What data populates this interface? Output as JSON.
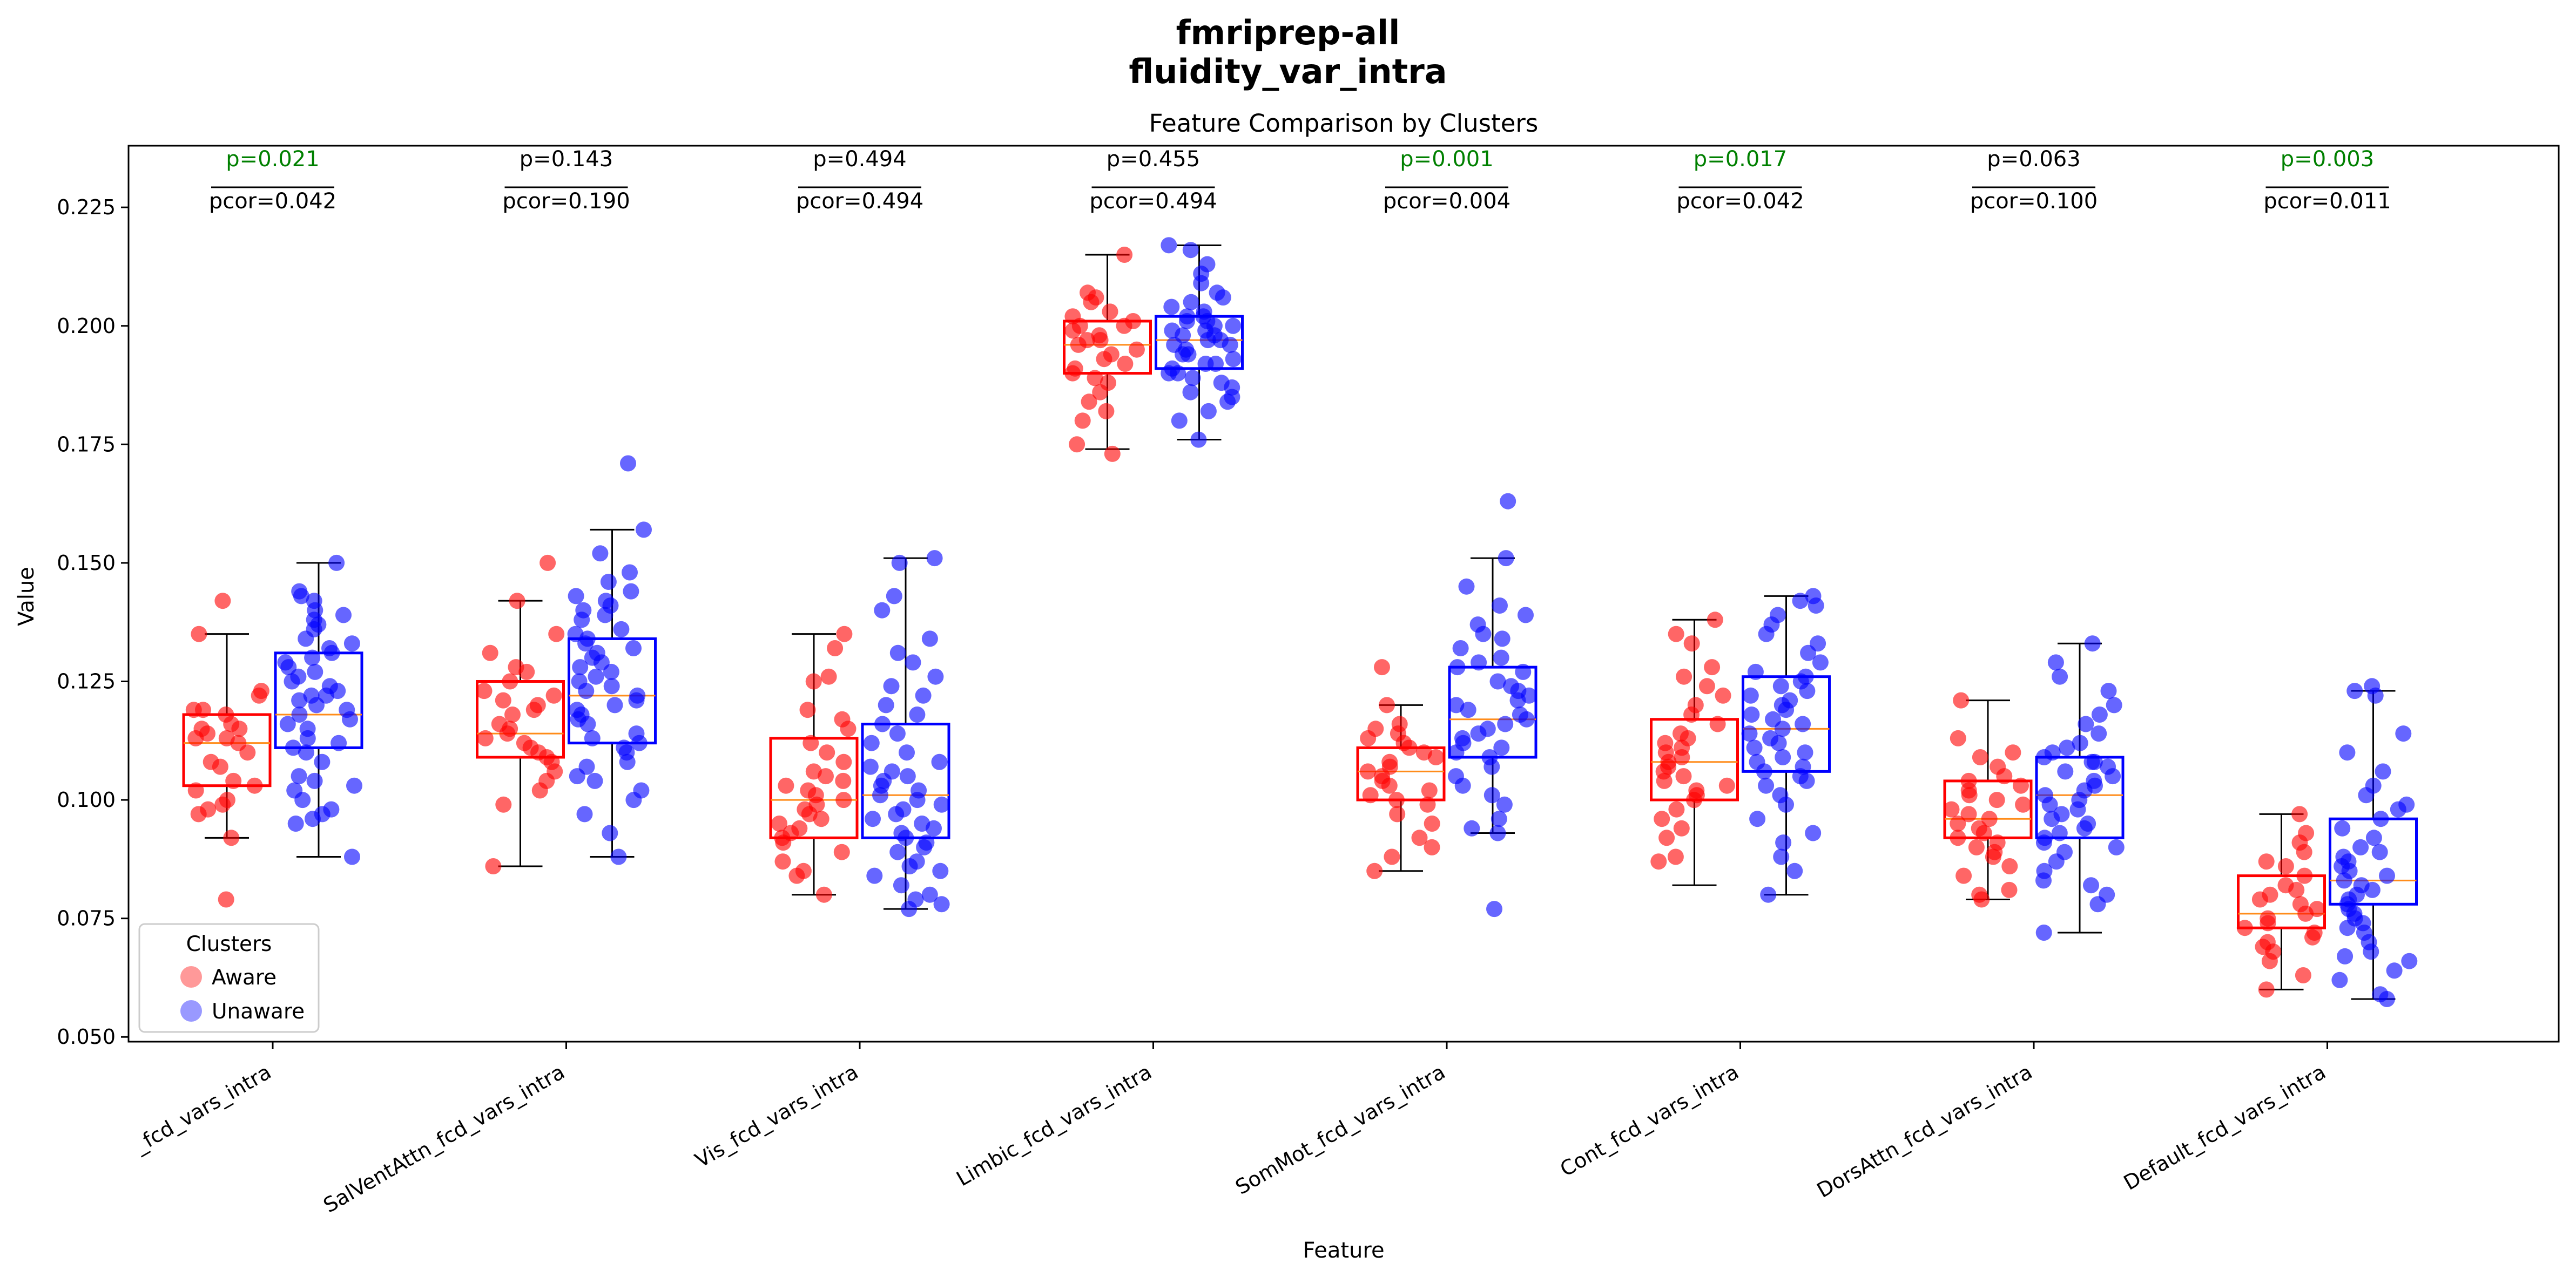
{
  "chart_data": {
    "type": "box-strip",
    "suptitle_line1": "fmriprep-all",
    "suptitle_line2": "fluidity_var_intra",
    "title": "Feature Comparison by Clusters",
    "xlabel": "Feature",
    "ylabel": "Value",
    "ylim": [
      0.049,
      0.238
    ],
    "yticks": [
      {
        "value": 0.05,
        "label": "0.050"
      },
      {
        "value": 0.075,
        "label": "0.075"
      },
      {
        "value": 0.1,
        "label": "0.100"
      },
      {
        "value": 0.125,
        "label": "0.125"
      },
      {
        "value": 0.15,
        "label": "0.150"
      },
      {
        "value": 0.175,
        "label": "0.175"
      },
      {
        "value": 0.2,
        "label": "0.200"
      },
      {
        "value": 0.225,
        "label": "0.225"
      }
    ],
    "grid": false,
    "legend": {
      "title": "Clusters",
      "position": "lower-left",
      "entries": [
        {
          "name": "Aware",
          "color": "#ff0000"
        },
        {
          "name": "Unaware",
          "color": "#0000ff"
        }
      ]
    },
    "colors": {
      "aware": "#ff0000",
      "unaware": "#0000ff",
      "median": "#ff8c1a",
      "significant": "#008000",
      "normal": "#000000"
    },
    "groups": [
      {
        "label": "_fcd_vars_intra",
        "p": "p=0.021",
        "pcor": "pcor=0.042",
        "significant": true,
        "aware": {
          "whislo": 0.092,
          "q1": 0.103,
          "med": 0.112,
          "q3": 0.118,
          "whishi": 0.135,
          "points": [
            0.079,
            0.092,
            0.097,
            0.098,
            0.099,
            0.1,
            0.102,
            0.103,
            0.104,
            0.107,
            0.108,
            0.11,
            0.112,
            0.113,
            0.113,
            0.114,
            0.115,
            0.115,
            0.116,
            0.118,
            0.119,
            0.119,
            0.122,
            0.123,
            0.135,
            0.142
          ]
        },
        "unaware": {
          "whislo": 0.088,
          "q1": 0.111,
          "med": 0.118,
          "q3": 0.131,
          "whishi": 0.15,
          "points": [
            0.088,
            0.095,
            0.096,
            0.097,
            0.098,
            0.1,
            0.102,
            0.103,
            0.104,
            0.105,
            0.108,
            0.11,
            0.111,
            0.112,
            0.113,
            0.115,
            0.116,
            0.117,
            0.118,
            0.119,
            0.12,
            0.121,
            0.122,
            0.122,
            0.123,
            0.124,
            0.125,
            0.126,
            0.127,
            0.128,
            0.129,
            0.13,
            0.131,
            0.132,
            0.133,
            0.134,
            0.136,
            0.137,
            0.138,
            0.139,
            0.14,
            0.142,
            0.143,
            0.144,
            0.15
          ]
        }
      },
      {
        "label": "SalVentAttn_fcd_vars_intra",
        "p": "p=0.143",
        "pcor": "pcor=0.190",
        "significant": false,
        "aware": {
          "whislo": 0.086,
          "q1": 0.109,
          "med": 0.114,
          "q3": 0.125,
          "whishi": 0.142,
          "points": [
            0.086,
            0.099,
            0.102,
            0.104,
            0.106,
            0.108,
            0.109,
            0.11,
            0.111,
            0.112,
            0.113,
            0.114,
            0.115,
            0.116,
            0.118,
            0.119,
            0.12,
            0.121,
            0.122,
            0.123,
            0.125,
            0.127,
            0.128,
            0.131,
            0.135,
            0.142,
            0.15
          ]
        },
        "unaware": {
          "whislo": 0.088,
          "q1": 0.112,
          "med": 0.122,
          "q3": 0.134,
          "whishi": 0.157,
          "points": [
            0.088,
            0.093,
            0.097,
            0.1,
            0.102,
            0.104,
            0.105,
            0.107,
            0.108,
            0.11,
            0.111,
            0.112,
            0.113,
            0.114,
            0.116,
            0.117,
            0.118,
            0.119,
            0.12,
            0.121,
            0.122,
            0.123,
            0.124,
            0.125,
            0.126,
            0.127,
            0.128,
            0.129,
            0.13,
            0.131,
            0.132,
            0.133,
            0.134,
            0.135,
            0.136,
            0.138,
            0.139,
            0.14,
            0.141,
            0.142,
            0.143,
            0.144,
            0.146,
            0.148,
            0.152,
            0.157,
            0.171
          ]
        }
      },
      {
        "label": "Vis_fcd_vars_intra",
        "p": "p=0.494",
        "pcor": "pcor=0.494",
        "significant": false,
        "aware": {
          "whislo": 0.08,
          "q1": 0.092,
          "med": 0.1,
          "q3": 0.113,
          "whishi": 0.135,
          "points": [
            0.08,
            0.084,
            0.085,
            0.087,
            0.089,
            0.091,
            0.092,
            0.093,
            0.094,
            0.095,
            0.096,
            0.097,
            0.098,
            0.099,
            0.1,
            0.101,
            0.102,
            0.103,
            0.104,
            0.105,
            0.106,
            0.108,
            0.11,
            0.112,
            0.115,
            0.117,
            0.119,
            0.125,
            0.126,
            0.132,
            0.135
          ]
        },
        "unaware": {
          "whislo": 0.077,
          "q1": 0.092,
          "med": 0.101,
          "q3": 0.116,
          "whishi": 0.151,
          "points": [
            0.077,
            0.078,
            0.079,
            0.08,
            0.082,
            0.084,
            0.085,
            0.086,
            0.087,
            0.089,
            0.09,
            0.091,
            0.092,
            0.093,
            0.094,
            0.095,
            0.096,
            0.097,
            0.098,
            0.099,
            0.1,
            0.101,
            0.102,
            0.103,
            0.104,
            0.105,
            0.106,
            0.107,
            0.108,
            0.11,
            0.112,
            0.114,
            0.116,
            0.118,
            0.12,
            0.122,
            0.124,
            0.126,
            0.129,
            0.131,
            0.134,
            0.14,
            0.143,
            0.15,
            0.151
          ]
        }
      },
      {
        "label": "Limbic_fcd_vars_intra",
        "p": "p=0.455",
        "pcor": "pcor=0.494",
        "significant": false,
        "aware": {
          "whislo": 0.174,
          "q1": 0.19,
          "med": 0.196,
          "q3": 0.201,
          "whishi": 0.215,
          "points": [
            0.173,
            0.175,
            0.18,
            0.182,
            0.184,
            0.186,
            0.188,
            0.189,
            0.19,
            0.191,
            0.192,
            0.193,
            0.194,
            0.195,
            0.196,
            0.197,
            0.197,
            0.198,
            0.199,
            0.2,
            0.2,
            0.201,
            0.202,
            0.203,
            0.205,
            0.206,
            0.207,
            0.215
          ]
        },
        "unaware": {
          "whislo": 0.176,
          "q1": 0.191,
          "med": 0.197,
          "q3": 0.202,
          "whishi": 0.217,
          "points": [
            0.176,
            0.18,
            0.182,
            0.184,
            0.185,
            0.186,
            0.187,
            0.188,
            0.189,
            0.19,
            0.19,
            0.191,
            0.192,
            0.192,
            0.193,
            0.194,
            0.194,
            0.195,
            0.196,
            0.196,
            0.197,
            0.197,
            0.198,
            0.198,
            0.199,
            0.199,
            0.2,
            0.2,
            0.201,
            0.201,
            0.202,
            0.202,
            0.203,
            0.204,
            0.205,
            0.206,
            0.207,
            0.209,
            0.211,
            0.213,
            0.216,
            0.217
          ]
        }
      },
      {
        "label": "SomMot_fcd_vars_intra",
        "p": "p=0.001",
        "pcor": "pcor=0.004",
        "significant": true,
        "aware": {
          "whislo": 0.085,
          "q1": 0.1,
          "med": 0.106,
          "q3": 0.111,
          "whishi": 0.12,
          "points": [
            0.085,
            0.088,
            0.09,
            0.092,
            0.095,
            0.097,
            0.099,
            0.1,
            0.101,
            0.102,
            0.103,
            0.104,
            0.105,
            0.106,
            0.107,
            0.108,
            0.109,
            0.11,
            0.111,
            0.112,
            0.113,
            0.114,
            0.115,
            0.116,
            0.12,
            0.128
          ]
        },
        "unaware": {
          "whislo": 0.093,
          "q1": 0.109,
          "med": 0.117,
          "q3": 0.128,
          "whishi": 0.151,
          "points": [
            0.077,
            0.093,
            0.094,
            0.096,
            0.099,
            0.101,
            0.103,
            0.105,
            0.107,
            0.109,
            0.11,
            0.111,
            0.112,
            0.113,
            0.114,
            0.115,
            0.116,
            0.117,
            0.118,
            0.119,
            0.12,
            0.121,
            0.122,
            0.123,
            0.124,
            0.125,
            0.127,
            0.128,
            0.129,
            0.13,
            0.132,
            0.134,
            0.135,
            0.137,
            0.139,
            0.141,
            0.145,
            0.151,
            0.163
          ]
        }
      },
      {
        "label": "Cont_fcd_vars_intra",
        "p": "p=0.017",
        "pcor": "pcor=0.042",
        "significant": true,
        "aware": {
          "whislo": 0.082,
          "q1": 0.1,
          "med": 0.108,
          "q3": 0.117,
          "whishi": 0.138,
          "points": [
            0.087,
            0.088,
            0.092,
            0.094,
            0.096,
            0.098,
            0.1,
            0.101,
            0.102,
            0.103,
            0.104,
            0.105,
            0.106,
            0.107,
            0.108,
            0.109,
            0.11,
            0.111,
            0.112,
            0.113,
            0.114,
            0.116,
            0.118,
            0.12,
            0.122,
            0.124,
            0.126,
            0.128,
            0.133,
            0.135,
            0.138
          ]
        },
        "unaware": {
          "whislo": 0.08,
          "q1": 0.106,
          "med": 0.115,
          "q3": 0.126,
          "whishi": 0.143,
          "points": [
            0.08,
            0.085,
            0.088,
            0.091,
            0.093,
            0.096,
            0.099,
            0.101,
            0.103,
            0.104,
            0.105,
            0.106,
            0.107,
            0.108,
            0.109,
            0.11,
            0.111,
            0.112,
            0.113,
            0.114,
            0.115,
            0.116,
            0.117,
            0.118,
            0.119,
            0.12,
            0.121,
            0.122,
            0.123,
            0.124,
            0.125,
            0.126,
            0.127,
            0.129,
            0.131,
            0.133,
            0.135,
            0.137,
            0.139,
            0.141,
            0.142,
            0.143
          ]
        }
      },
      {
        "label": "DorsAttn_fcd_vars_intra",
        "p": "p=0.063",
        "pcor": "pcor=0.100",
        "significant": false,
        "aware": {
          "whislo": 0.079,
          "q1": 0.092,
          "med": 0.096,
          "q3": 0.104,
          "whishi": 0.121,
          "points": [
            0.079,
            0.08,
            0.081,
            0.084,
            0.086,
            0.088,
            0.089,
            0.09,
            0.091,
            0.092,
            0.093,
            0.094,
            0.095,
            0.096,
            0.097,
            0.098,
            0.099,
            0.1,
            0.101,
            0.102,
            0.103,
            0.104,
            0.105,
            0.107,
            0.109,
            0.11,
            0.113,
            0.121
          ]
        },
        "unaware": {
          "whislo": 0.072,
          "q1": 0.092,
          "med": 0.101,
          "q3": 0.109,
          "whishi": 0.133,
          "points": [
            0.072,
            0.078,
            0.08,
            0.082,
            0.083,
            0.085,
            0.087,
            0.089,
            0.09,
            0.091,
            0.092,
            0.093,
            0.094,
            0.095,
            0.096,
            0.097,
            0.098,
            0.099,
            0.1,
            0.101,
            0.102,
            0.103,
            0.104,
            0.105,
            0.106,
            0.107,
            0.108,
            0.108,
            0.109,
            0.11,
            0.111,
            0.112,
            0.114,
            0.116,
            0.118,
            0.12,
            0.123,
            0.126,
            0.129,
            0.133
          ]
        }
      },
      {
        "label": "Default_fcd_vars_intra",
        "p": "p=0.003",
        "pcor": "pcor=0.011",
        "significant": true,
        "aware": {
          "whislo": 0.06,
          "q1": 0.073,
          "med": 0.076,
          "q3": 0.084,
          "whishi": 0.097,
          "points": [
            0.06,
            0.063,
            0.066,
            0.068,
            0.069,
            0.07,
            0.071,
            0.072,
            0.073,
            0.074,
            0.075,
            0.076,
            0.077,
            0.078,
            0.079,
            0.08,
            0.081,
            0.082,
            0.084,
            0.086,
            0.087,
            0.089,
            0.091,
            0.093,
            0.097
          ]
        },
        "unaware": {
          "whislo": 0.058,
          "q1": 0.078,
          "med": 0.083,
          "q3": 0.096,
          "whishi": 0.123,
          "points": [
            0.058,
            0.059,
            0.062,
            0.064,
            0.066,
            0.067,
            0.068,
            0.07,
            0.072,
            0.073,
            0.074,
            0.075,
            0.076,
            0.077,
            0.078,
            0.079,
            0.08,
            0.081,
            0.082,
            0.083,
            0.084,
            0.085,
            0.086,
            0.087,
            0.088,
            0.089,
            0.09,
            0.092,
            0.094,
            0.096,
            0.098,
            0.099,
            0.101,
            0.103,
            0.106,
            0.11,
            0.114,
            0.122,
            0.123,
            0.124
          ]
        }
      }
    ]
  }
}
